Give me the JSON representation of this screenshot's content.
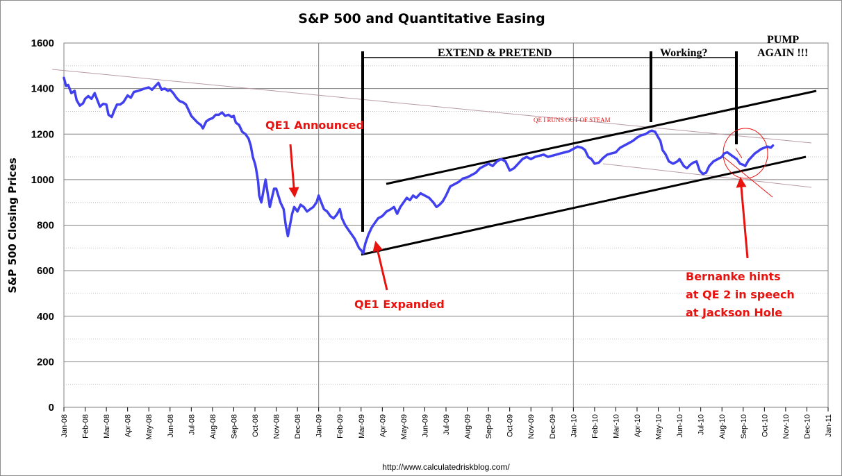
{
  "chart_data": {
    "type": "line",
    "title": "S&P 500 and Quantitative Easing",
    "ylabel": "S&P 500 Closing Prices",
    "xlabel": "",
    "ylim": [
      0,
      1600
    ],
    "yticks": [
      "0",
      "200",
      "400",
      "600",
      "800",
      "1000",
      "1200",
      "1400",
      "1600"
    ],
    "x_categories": [
      "Jan-08",
      "Feb-08",
      "Mar-08",
      "Apr-08",
      "May-08",
      "Jun-08",
      "Jul-08",
      "Aug-08",
      "Sep-08",
      "Oct-08",
      "Nov-08",
      "Dec-08",
      "Jan-09",
      "Feb-09",
      "Mar-09",
      "Apr-09",
      "May-09",
      "Jun-09",
      "Jul-09",
      "Aug-09",
      "Sep-09",
      "Oct-09",
      "Nov-09",
      "Dec-09",
      "Jan-10",
      "Feb-10",
      "Mar-10",
      "Apr-10",
      "May-10",
      "Jun-10",
      "Jul-10",
      "Aug-10",
      "Sep-10",
      "Oct-10",
      "Nov-10",
      "Dec-10",
      "Jan-11"
    ],
    "grid": true,
    "series": [
      {
        "color": "#4040ee",
        "values": [
          [
            0.0,
            1447
          ],
          [
            0.1,
            1411
          ],
          [
            0.2,
            1416
          ],
          [
            0.35,
            1380
          ],
          [
            0.5,
            1390
          ],
          [
            0.6,
            1349
          ],
          [
            0.75,
            1325
          ],
          [
            0.9,
            1335
          ],
          [
            1.0,
            1355
          ],
          [
            1.15,
            1367
          ],
          [
            1.3,
            1355
          ],
          [
            1.45,
            1380
          ],
          [
            1.55,
            1355
          ],
          [
            1.7,
            1320
          ],
          [
            1.85,
            1333
          ],
          [
            2.0,
            1330
          ],
          [
            2.1,
            1285
          ],
          [
            2.25,
            1275
          ],
          [
            2.4,
            1310
          ],
          [
            2.5,
            1330
          ],
          [
            2.65,
            1330
          ],
          [
            2.8,
            1340
          ],
          [
            3.0,
            1370
          ],
          [
            3.15,
            1360
          ],
          [
            3.3,
            1385
          ],
          [
            3.5,
            1390
          ],
          [
            3.65,
            1395
          ],
          [
            3.8,
            1400
          ],
          [
            4.0,
            1405
          ],
          [
            4.15,
            1395
          ],
          [
            4.3,
            1410
          ],
          [
            4.45,
            1425
          ],
          [
            4.6,
            1395
          ],
          [
            4.75,
            1400
          ],
          [
            4.9,
            1390
          ],
          [
            5.0,
            1395
          ],
          [
            5.15,
            1380
          ],
          [
            5.3,
            1360
          ],
          [
            5.45,
            1345
          ],
          [
            5.6,
            1340
          ],
          [
            5.75,
            1330
          ],
          [
            5.9,
            1300
          ],
          [
            6.0,
            1280
          ],
          [
            6.15,
            1265
          ],
          [
            6.3,
            1250
          ],
          [
            6.45,
            1240
          ],
          [
            6.55,
            1225
          ],
          [
            6.7,
            1255
          ],
          [
            6.85,
            1265
          ],
          [
            7.0,
            1270
          ],
          [
            7.15,
            1285
          ],
          [
            7.3,
            1285
          ],
          [
            7.45,
            1295
          ],
          [
            7.6,
            1280
          ],
          [
            7.75,
            1285
          ],
          [
            7.9,
            1275
          ],
          [
            8.0,
            1280
          ],
          [
            8.1,
            1250
          ],
          [
            8.25,
            1240
          ],
          [
            8.4,
            1210
          ],
          [
            8.55,
            1200
          ],
          [
            8.7,
            1180
          ],
          [
            8.8,
            1150
          ],
          [
            8.9,
            1100
          ],
          [
            9.0,
            1070
          ],
          [
            9.05,
            1050
          ],
          [
            9.15,
            990
          ],
          [
            9.2,
            930
          ],
          [
            9.3,
            900
          ],
          [
            9.4,
            950
          ],
          [
            9.5,
            1000
          ],
          [
            9.6,
            940
          ],
          [
            9.7,
            880
          ],
          [
            9.8,
            920
          ],
          [
            9.9,
            960
          ],
          [
            10.0,
            960
          ],
          [
            10.1,
            930
          ],
          [
            10.2,
            900
          ],
          [
            10.35,
            870
          ],
          [
            10.45,
            800
          ],
          [
            10.55,
            752
          ],
          [
            10.65,
            800
          ],
          [
            10.75,
            850
          ],
          [
            10.85,
            880
          ],
          [
            11.0,
            860
          ],
          [
            11.15,
            890
          ],
          [
            11.3,
            880
          ],
          [
            11.45,
            860
          ],
          [
            11.6,
            870
          ],
          [
            11.75,
            880
          ],
          [
            11.9,
            900
          ],
          [
            12.0,
            930
          ],
          [
            12.1,
            905
          ],
          [
            12.25,
            870
          ],
          [
            12.4,
            860
          ],
          [
            12.55,
            840
          ],
          [
            12.7,
            830
          ],
          [
            12.85,
            845
          ],
          [
            13.0,
            870
          ],
          [
            13.1,
            830
          ],
          [
            13.25,
            800
          ],
          [
            13.4,
            780
          ],
          [
            13.55,
            760
          ],
          [
            13.7,
            740
          ],
          [
            13.8,
            720
          ],
          [
            13.9,
            700
          ],
          [
            14.0,
            690
          ],
          [
            14.1,
            676
          ],
          [
            14.2,
            720
          ],
          [
            14.35,
            760
          ],
          [
            14.5,
            790
          ],
          [
            14.65,
            810
          ],
          [
            14.8,
            830
          ],
          [
            15.0,
            840
          ],
          [
            15.2,
            860
          ],
          [
            15.4,
            870
          ],
          [
            15.55,
            880
          ],
          [
            15.7,
            850
          ],
          [
            15.85,
            880
          ],
          [
            16.0,
            900
          ],
          [
            16.15,
            920
          ],
          [
            16.3,
            910
          ],
          [
            16.45,
            930
          ],
          [
            16.6,
            920
          ],
          [
            16.8,
            940
          ],
          [
            17.0,
            930
          ],
          [
            17.2,
            920
          ],
          [
            17.4,
            900
          ],
          [
            17.55,
            880
          ],
          [
            17.7,
            890
          ],
          [
            17.85,
            905
          ],
          [
            18.0,
            930
          ],
          [
            18.2,
            970
          ],
          [
            18.4,
            980
          ],
          [
            18.6,
            990
          ],
          [
            18.8,
            1005
          ],
          [
            19.0,
            1010
          ],
          [
            19.2,
            1020
          ],
          [
            19.4,
            1030
          ],
          [
            19.6,
            1050
          ],
          [
            19.8,
            1060
          ],
          [
            20.0,
            1070
          ],
          [
            20.2,
            1060
          ],
          [
            20.4,
            1080
          ],
          [
            20.6,
            1090
          ],
          [
            20.8,
            1080
          ],
          [
            21.0,
            1040
          ],
          [
            21.2,
            1050
          ],
          [
            21.4,
            1070
          ],
          [
            21.6,
            1090
          ],
          [
            21.8,
            1100
          ],
          [
            22.0,
            1090
          ],
          [
            22.2,
            1100
          ],
          [
            22.4,
            1105
          ],
          [
            22.6,
            1110
          ],
          [
            22.8,
            1100
          ],
          [
            23.0,
            1105
          ],
          [
            23.2,
            1110
          ],
          [
            23.4,
            1115
          ],
          [
            23.6,
            1120
          ],
          [
            23.8,
            1125
          ],
          [
            24.0,
            1135
          ],
          [
            24.2,
            1145
          ],
          [
            24.4,
            1140
          ],
          [
            24.55,
            1130
          ],
          [
            24.7,
            1100
          ],
          [
            24.85,
            1090
          ],
          [
            25.0,
            1070
          ],
          [
            25.2,
            1075
          ],
          [
            25.4,
            1095
          ],
          [
            25.6,
            1110
          ],
          [
            25.8,
            1115
          ],
          [
            26.0,
            1120
          ],
          [
            26.2,
            1140
          ],
          [
            26.4,
            1150
          ],
          [
            26.6,
            1160
          ],
          [
            26.8,
            1170
          ],
          [
            27.0,
            1185
          ],
          [
            27.2,
            1195
          ],
          [
            27.4,
            1200
          ],
          [
            27.6,
            1212
          ],
          [
            27.7,
            1215
          ],
          [
            27.85,
            1210
          ],
          [
            28.0,
            1185
          ],
          [
            28.1,
            1170
          ],
          [
            28.2,
            1130
          ],
          [
            28.35,
            1110
          ],
          [
            28.5,
            1080
          ],
          [
            28.7,
            1070
          ],
          [
            28.9,
            1080
          ],
          [
            29.0,
            1090
          ],
          [
            29.2,
            1060
          ],
          [
            29.35,
            1050
          ],
          [
            29.5,
            1065
          ],
          [
            29.65,
            1075
          ],
          [
            29.8,
            1080
          ],
          [
            29.95,
            1040
          ],
          [
            30.1,
            1025
          ],
          [
            30.25,
            1030
          ],
          [
            30.4,
            1060
          ],
          [
            30.6,
            1080
          ],
          [
            30.8,
            1090
          ],
          [
            31.0,
            1100
          ],
          [
            31.1,
            1115
          ],
          [
            31.25,
            1120
          ],
          [
            31.4,
            1110
          ],
          [
            31.55,
            1100
          ],
          [
            31.7,
            1090
          ],
          [
            31.85,
            1070
          ],
          [
            32.0,
            1065
          ],
          [
            32.1,
            1060
          ],
          [
            32.25,
            1085
          ],
          [
            32.4,
            1100
          ],
          [
            32.55,
            1115
          ],
          [
            32.7,
            1125
          ],
          [
            32.85,
            1135
          ],
          [
            33.0,
            1140
          ],
          [
            33.15,
            1145
          ],
          [
            33.3,
            1140
          ],
          [
            33.4,
            1150
          ]
        ]
      }
    ],
    "annotations": [
      {
        "text": "QE1 Announced",
        "color": "#e8120f"
      },
      {
        "text": "QE1 Expanded",
        "color": "#e8120f"
      },
      {
        "text": "EXTEND & PRETEND",
        "color": "#000000"
      },
      {
        "text": "Working?",
        "color": "#000000"
      },
      {
        "text": "PUMP",
        "color": "#000000"
      },
      {
        "text": "AGAIN !!!",
        "color": "#000000"
      },
      {
        "text": "QE I RUNS OUT OF STEAM",
        "color": "#e8120f"
      },
      {
        "text": "Bernanke hints",
        "color": "#e8120f"
      },
      {
        "text": "at QE 2 in speech",
        "color": "#e8120f"
      },
      {
        "text": "at Jackson Hole",
        "color": "#e8120f"
      }
    ]
  },
  "footer": {
    "source_url": "http://www.calculatedriskblog.com/"
  },
  "colors": {
    "series": "#4040ee",
    "annotation_red": "#e8120f",
    "trend_black": "#000000",
    "gridline": "#808080",
    "background": "#ffffff"
  }
}
